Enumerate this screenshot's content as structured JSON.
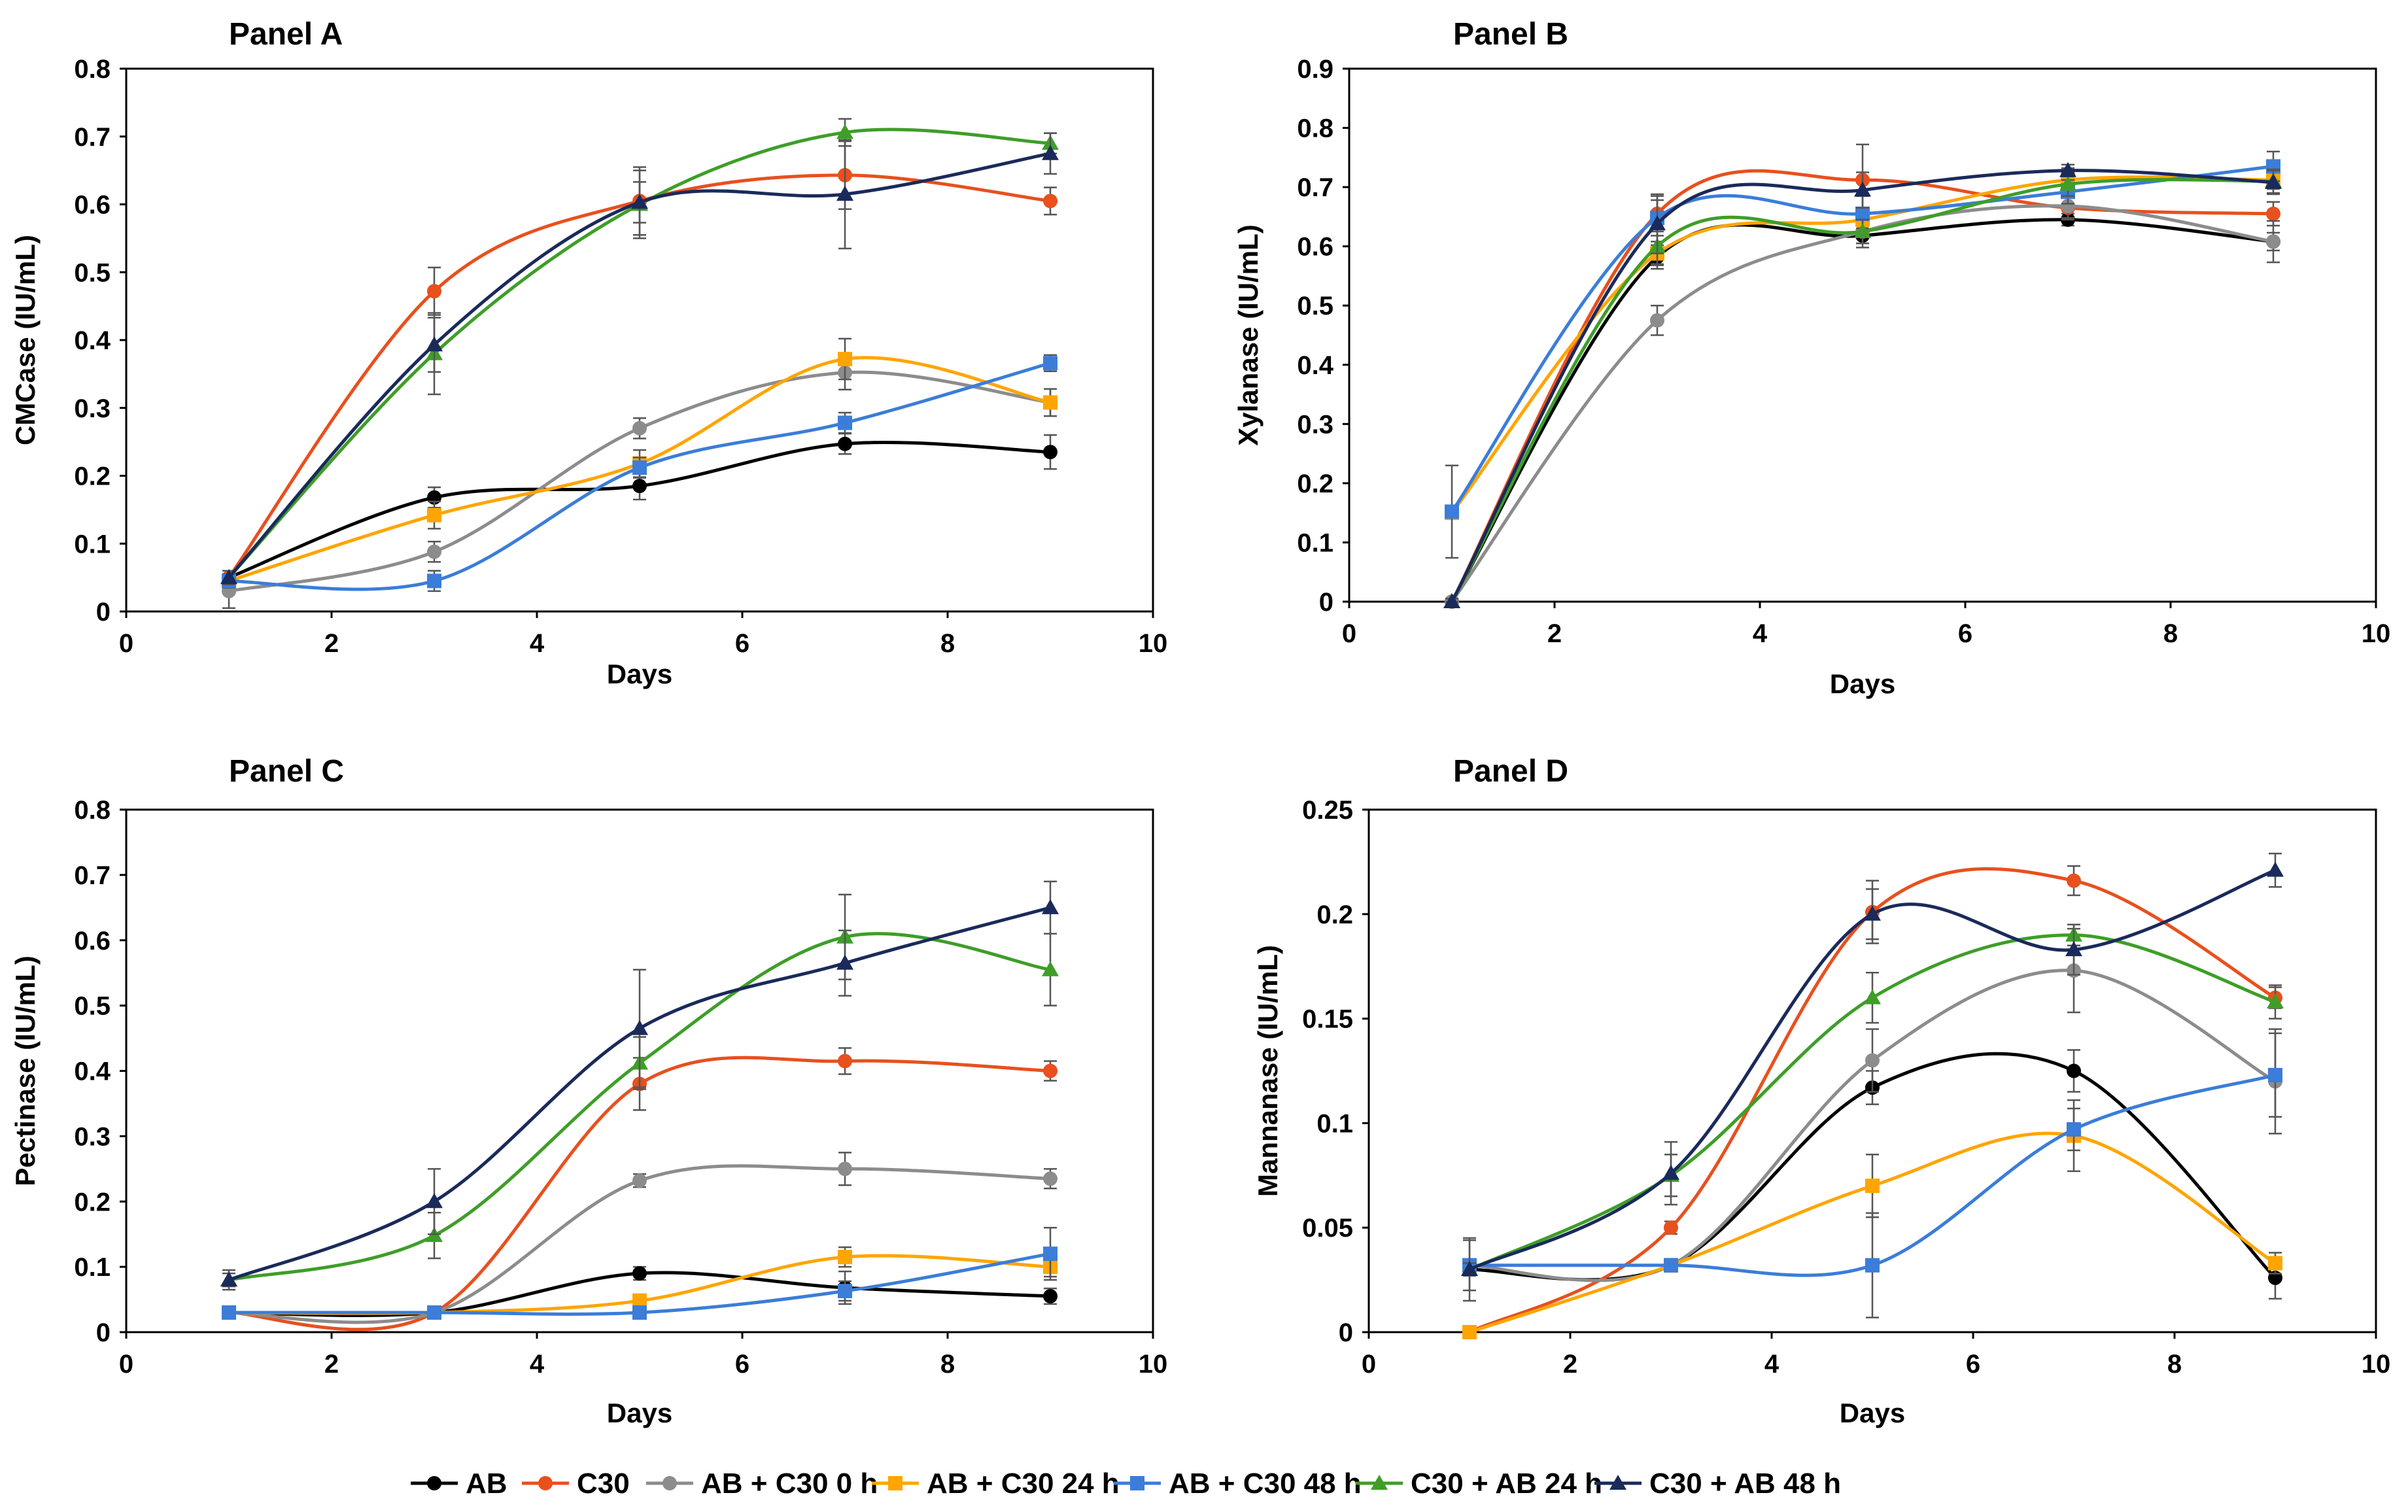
{
  "legend": {
    "entries": [
      {
        "name": "AB",
        "color": "#000000",
        "marker": "circle"
      },
      {
        "name": "C30",
        "color": "#E8501E",
        "marker": "circle"
      },
      {
        "name": "AB + C30 0 h",
        "color": "#8C8C8C",
        "marker": "circle"
      },
      {
        "name": "AB + C30 24 h",
        "color": "#FFA500",
        "marker": "square"
      },
      {
        "name": "AB + C30 48 h",
        "color": "#3B7DD8",
        "marker": "square"
      },
      {
        "name": "C30 + AB 24 h",
        "color": "#3E9E28",
        "marker": "triangle"
      },
      {
        "name": "C30 + AB 48 h",
        "color": "#1A2A5A",
        "marker": "triangle"
      }
    ]
  },
  "chart_data": [
    {
      "type": "line",
      "title": "Panel A",
      "xlabel": "Days",
      "ylabel": "CMCase (IU/mL)",
      "xlim": [
        0,
        10
      ],
      "ylim": [
        0,
        0.8
      ],
      "xticks": [
        "0",
        "2",
        "4",
        "6",
        "8",
        "10"
      ],
      "yticks": [
        "0",
        "0.1",
        "0.2",
        "0.3",
        "0.4",
        "0.5",
        "0.6",
        "0.7",
        "0.8"
      ],
      "x": [
        1,
        3,
        5,
        7,
        9
      ],
      "series": [
        {
          "name": "AB",
          "values": [
            0.05,
            0.168,
            0.185,
            0.247,
            0.235
          ],
          "errors": [
            0.01,
            0.015,
            0.02,
            0.015,
            0.025
          ]
        },
        {
          "name": "C30",
          "values": [
            0.05,
            0.472,
            0.605,
            0.643,
            0.605
          ],
          "errors": [
            0.01,
            0.035,
            0.05,
            0.05,
            0.02
          ]
        },
        {
          "name": "AB + C30 0 h",
          "values": [
            0.03,
            0.088,
            0.27,
            0.352,
            0.308
          ],
          "errors": [
            0.025,
            0.015,
            0.015,
            0.025,
            0.02
          ]
        },
        {
          "name": "AB + C30 24 h",
          "values": [
            0.045,
            0.142,
            0.218,
            0.372,
            0.308
          ],
          "errors": [
            0.01,
            0.02,
            0.02,
            0.03,
            0.02
          ]
        },
        {
          "name": "AB + C30 48 h",
          "values": [
            0.045,
            0.045,
            0.212,
            0.278,
            0.366
          ],
          "errors": [
            0.01,
            0.015,
            0.015,
            0.015,
            0.012
          ]
        },
        {
          "name": "C30 + AB 24 h",
          "values": [
            0.05,
            0.38,
            0.6,
            0.706,
            0.69
          ],
          "errors": [
            0.01,
            0.06,
            0.05,
            0.02,
            0.015
          ]
        },
        {
          "name": "C30 + AB 48 h",
          "values": [
            0.05,
            0.393,
            0.603,
            0.615,
            0.675
          ],
          "errors": [
            0.01,
            0.04,
            0.03,
            0.08,
            0.03
          ]
        }
      ]
    },
    {
      "type": "line",
      "title": "Panel B",
      "xlabel": "Days",
      "ylabel": "Xylanase (IU/mL)",
      "xlim": [
        0,
        10
      ],
      "ylim": [
        0,
        0.9
      ],
      "xticks": [
        "0",
        "2",
        "4",
        "6",
        "8",
        "10"
      ],
      "yticks": [
        "0",
        "0.1",
        "0.2",
        "0.3",
        "0.4",
        "0.5",
        "0.6",
        "0.7",
        "0.8",
        "0.9"
      ],
      "x": [
        1,
        3,
        5,
        7,
        9
      ],
      "series": [
        {
          "name": "AB",
          "values": [
            0.0,
            0.582,
            0.618,
            0.645,
            0.608
          ],
          "errors": [
            0.005,
            0.02,
            0.02,
            0.01,
            0.015
          ]
        },
        {
          "name": "C30",
          "values": [
            0.0,
            0.655,
            0.712,
            0.665,
            0.655
          ],
          "errors": [
            0.005,
            0.03,
            0.06,
            0.02,
            0.02
          ]
        },
        {
          "name": "AB + C30 0 h",
          "values": [
            0.0,
            0.475,
            0.625,
            0.668,
            0.608
          ],
          "errors": [
            0.005,
            0.025,
            0.02,
            0.02,
            0.035
          ]
        },
        {
          "name": "AB + C30 24 h",
          "values": [
            0.15,
            0.588,
            0.645,
            0.712,
            0.712
          ],
          "errors": [
            0.005,
            0.02,
            0.015,
            0.02,
            0.015
          ]
        },
        {
          "name": "AB + C30 48 h",
          "values": [
            0.152,
            0.648,
            0.655,
            0.692,
            0.735
          ],
          "errors": [
            0.078,
            0.03,
            0.03,
            0.02,
            0.025
          ]
        },
        {
          "name": "C30 + AB 24 h",
          "values": [
            0.0,
            0.6,
            0.625,
            0.705,
            0.71
          ],
          "errors": [
            0.005,
            0.03,
            0.02,
            0.02,
            0.02
          ]
        },
        {
          "name": "C30 + AB 48 h",
          "values": [
            0.0,
            0.638,
            0.695,
            0.728,
            0.708
          ],
          "errors": [
            0.005,
            0.05,
            0.03,
            0.01,
            0.02
          ]
        }
      ]
    },
    {
      "type": "line",
      "title": "Panel C",
      "xlabel": "Days",
      "ylabel": "Pectinase (IU/mL)",
      "xlim": [
        0,
        10
      ],
      "ylim": [
        0,
        0.8
      ],
      "xticks": [
        "0",
        "2",
        "4",
        "6",
        "8",
        "10"
      ],
      "yticks": [
        "0",
        "0.1",
        "0.2",
        "0.3",
        "0.4",
        "0.5",
        "0.6",
        "0.7",
        "0.8"
      ],
      "x": [
        1,
        3,
        5,
        7,
        9
      ],
      "series": [
        {
          "name": "AB",
          "values": [
            0.03,
            0.03,
            0.09,
            0.068,
            0.055
          ],
          "errors": [
            0.005,
            0.005,
            0.01,
            0.025,
            0.012
          ]
        },
        {
          "name": "C30",
          "values": [
            0.03,
            0.03,
            0.38,
            0.415,
            0.4
          ],
          "errors": [
            0.005,
            0.005,
            0.04,
            0.02,
            0.015
          ]
        },
        {
          "name": "AB + C30 0 h",
          "values": [
            0.03,
            0.03,
            0.232,
            0.25,
            0.235
          ],
          "errors": [
            0.005,
            0.005,
            0.01,
            0.025,
            0.015
          ]
        },
        {
          "name": "AB + C30 24 h",
          "values": [
            0.03,
            0.03,
            0.048,
            0.115,
            0.1
          ],
          "errors": [
            0.005,
            0.005,
            0.01,
            0.015,
            0.015
          ]
        },
        {
          "name": "AB + C30 48 h",
          "values": [
            0.03,
            0.03,
            0.03,
            0.063,
            0.12
          ],
          "errors": [
            0.005,
            0.005,
            0.005,
            0.015,
            0.04
          ]
        },
        {
          "name": "C30 + AB 24 h",
          "values": [
            0.08,
            0.148,
            0.412,
            0.605,
            0.555
          ],
          "errors": [
            0.01,
            0.035,
            0.04,
            0.065,
            0.055
          ]
        },
        {
          "name": "C30 + AB 48 h",
          "values": [
            0.08,
            0.2,
            0.465,
            0.565,
            0.65
          ],
          "errors": [
            0.015,
            0.05,
            0.09,
            0.05,
            0.04
          ]
        }
      ]
    },
    {
      "type": "line",
      "title": "Panel D",
      "xlabel": "Days",
      "ylabel": "Mannanase (IU/mL)",
      "xlim": [
        0,
        10
      ],
      "ylim": [
        0,
        0.25
      ],
      "xticks": [
        "0",
        "2",
        "4",
        "6",
        "8",
        "10"
      ],
      "yticks": [
        "0",
        "0.05",
        "0.1",
        "0.15",
        "0.2",
        "0.25"
      ],
      "x": [
        1,
        3,
        5,
        7,
        9
      ],
      "series": [
        {
          "name": "AB",
          "values": [
            0.03,
            0.032,
            0.117,
            0.125,
            0.026
          ],
          "errors": [
            0.003,
            0.003,
            0.008,
            0.01,
            0.01
          ]
        },
        {
          "name": "C30",
          "values": [
            0.0,
            0.05,
            0.201,
            0.216,
            0.16
          ],
          "errors": [
            0.002,
            0.003,
            0.015,
            0.007,
            0.005
          ]
        },
        {
          "name": "AB + C30 0 h",
          "values": [
            0.032,
            0.032,
            0.13,
            0.173,
            0.12
          ],
          "errors": [
            0.003,
            0.003,
            0.015,
            0.02,
            0.025
          ]
        },
        {
          "name": "AB + C30 24 h",
          "values": [
            0.0,
            0.032,
            0.07,
            0.094,
            0.033
          ],
          "errors": [
            0.002,
            0.003,
            0.015,
            0.017,
            0.005
          ]
        },
        {
          "name": "AB + C30 48 h",
          "values": [
            0.032,
            0.032,
            0.032,
            0.097,
            0.123
          ],
          "errors": [
            0.012,
            0.003,
            0.025,
            0.01,
            0.02
          ]
        },
        {
          "name": "C30 + AB 24 h",
          "values": [
            0.03,
            0.075,
            0.16,
            0.19,
            0.158
          ],
          "errors": [
            0.003,
            0.01,
            0.012,
            0.005,
            0.008
          ]
        },
        {
          "name": "C30 + AB 48 h",
          "values": [
            0.03,
            0.076,
            0.2,
            0.183,
            0.221
          ],
          "errors": [
            0.015,
            0.015,
            0.012,
            0.012,
            0.008
          ]
        }
      ]
    }
  ]
}
